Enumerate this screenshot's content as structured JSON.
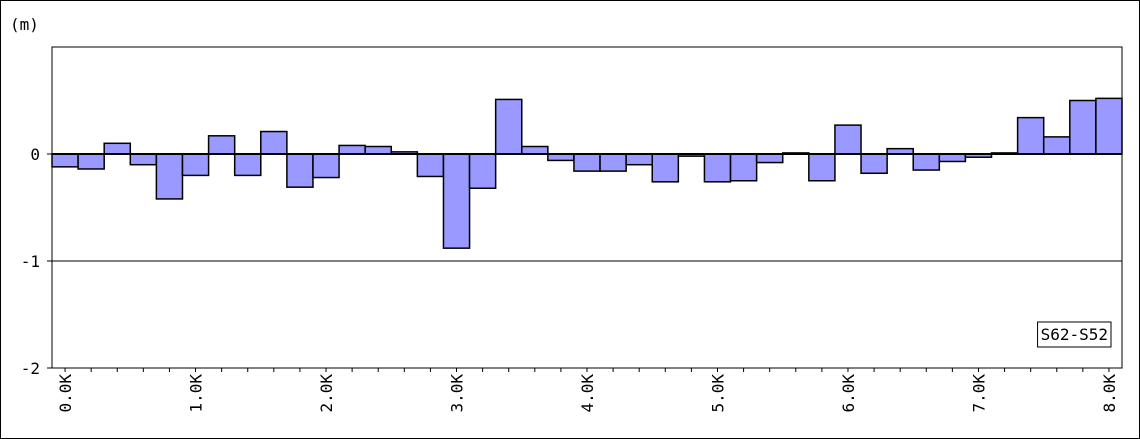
{
  "chart_data": {
    "type": "bar",
    "unit_label": "(m)",
    "categories": [
      "0.0K",
      null,
      null,
      null,
      null,
      "1.0K",
      null,
      null,
      null,
      null,
      "2.0K",
      null,
      null,
      null,
      null,
      "3.0K",
      null,
      null,
      null,
      null,
      "4.0K",
      null,
      null,
      null,
      null,
      "5.0K",
      null,
      null,
      null,
      null,
      "6.0K",
      null,
      null,
      null,
      null,
      "7.0K",
      null,
      null,
      null,
      null,
      "8.0K"
    ],
    "series": [
      {
        "name": "S62-S52",
        "color": "#9999ff",
        "values": [
          -0.12,
          -0.14,
          0.1,
          -0.1,
          -0.42,
          -0.2,
          0.17,
          -0.2,
          0.21,
          -0.31,
          -0.22,
          0.08,
          0.07,
          0.02,
          -0.21,
          -0.88,
          -0.32,
          0.51,
          0.07,
          -0.06,
          -0.16,
          -0.16,
          -0.1,
          -0.26,
          -0.02,
          -0.26,
          -0.25,
          -0.08,
          0.01,
          -0.25,
          0.27,
          -0.18,
          0.05,
          -0.15,
          -0.07,
          -0.03,
          0.01,
          0.34,
          0.16,
          0.5,
          0.52
        ]
      }
    ],
    "ylim": [
      -2,
      1
    ],
    "yticks": [
      -2,
      -1,
      0
    ],
    "grid": true
  }
}
